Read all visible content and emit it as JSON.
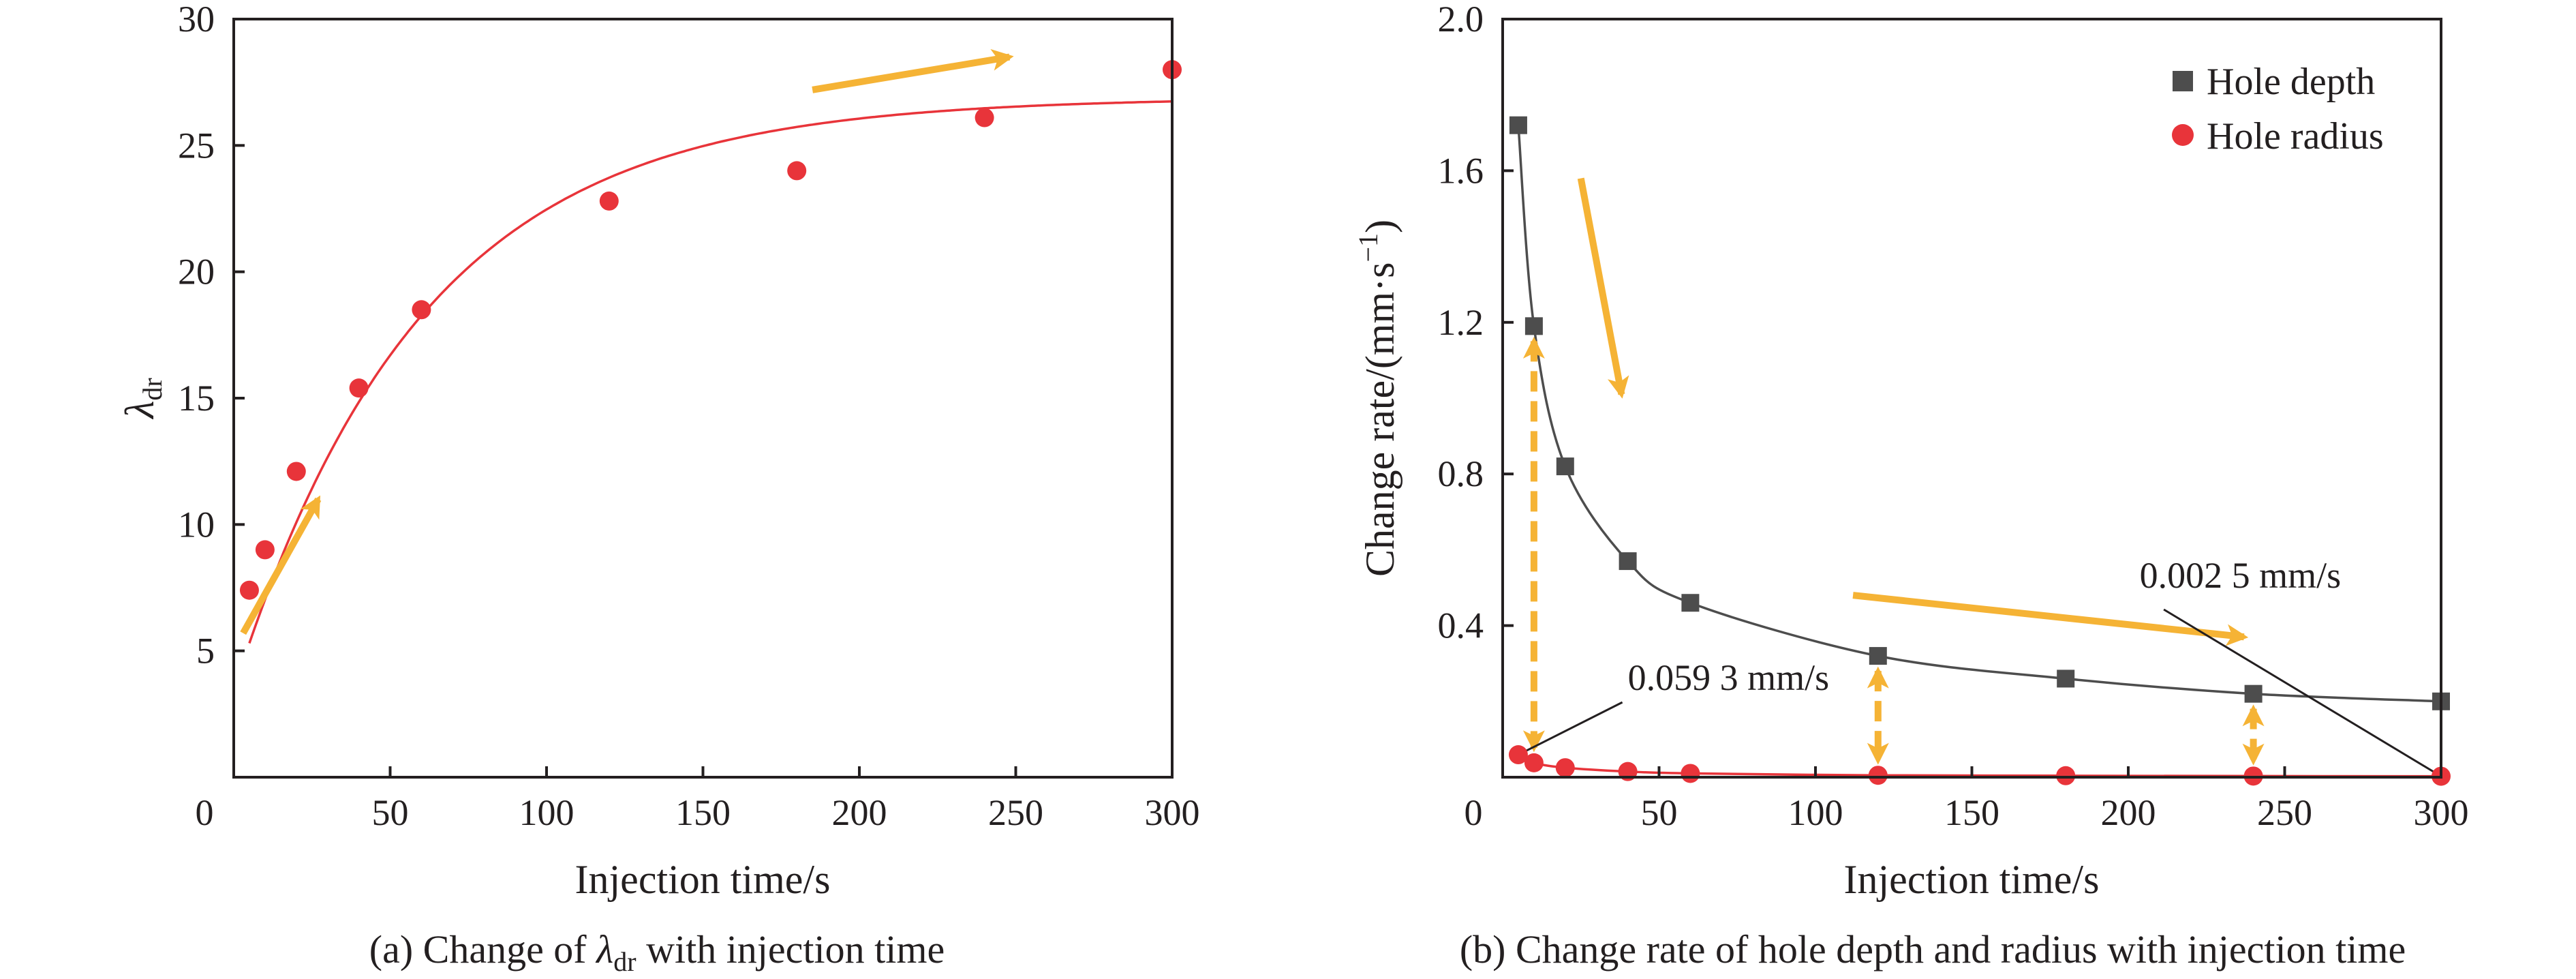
{
  "chart_data": [
    {
      "type": "scatter",
      "caption_prefix": "(a) Change of ",
      "caption_symbol": "λ",
      "caption_sub": "dr",
      "caption_suffix": " with injection time",
      "xlabel": "Injection time/s",
      "ylabel_symbol": "λ",
      "ylabel_sub": "dr",
      "xlim": [
        0,
        300
      ],
      "ylim": [
        0,
        30
      ],
      "x_ticks": [
        0,
        50,
        100,
        150,
        200,
        250,
        300
      ],
      "y_ticks": [
        5,
        10,
        15,
        20,
        25,
        30
      ],
      "origin_label": "0",
      "series": [
        {
          "color": "#e8343a",
          "marker": "circle",
          "x": [
            5,
            10,
            20,
            40,
            60,
            120,
            180,
            240,
            300
          ],
          "y": [
            7.4,
            9.0,
            12.1,
            15.4,
            18.5,
            22.8,
            24.0,
            26.1,
            28.0
          ]
        }
      ],
      "fit_curve": {
        "color": "#e8343a",
        "form": "exponential-saturation",
        "a": 26.9,
        "b": 21.6,
        "tau": 60
      },
      "arrows": [
        {
          "from": [
            3,
            5.7
          ],
          "to": [
            27,
            11.0
          ],
          "color": "#f5b335"
        },
        {
          "from": [
            185,
            27.2
          ],
          "to": [
            248,
            28.5
          ],
          "color": "#f5b335"
        }
      ],
      "grid": false
    },
    {
      "type": "scatter",
      "caption": "(b) Change rate of hole depth and radius with injection time",
      "xlabel": "Injection time/s",
      "ylabel_main": "Change rate/(mm·s",
      "ylabel_sup": "−1",
      "ylabel_close": ")",
      "xlim": [
        0,
        300
      ],
      "ylim": [
        0,
        2.0
      ],
      "x_ticks": [
        0,
        50,
        100,
        150,
        200,
        250,
        300
      ],
      "y_ticks": [
        0.4,
        0.8,
        1.2,
        1.6,
        2.0
      ],
      "y_tick_labels": [
        "0.4",
        "0.8",
        "1.2",
        "1.6",
        "2.0"
      ],
      "origin_label": "0",
      "legend_position": "top-right",
      "series": [
        {
          "name": "Hole depth",
          "color": "#4d4d4d",
          "marker": "square",
          "x": [
            5,
            10,
            20,
            40,
            60,
            120,
            180,
            240,
            300
          ],
          "y": [
            1.72,
            1.19,
            0.82,
            0.57,
            0.46,
            0.32,
            0.26,
            0.22,
            0.2
          ]
        },
        {
          "name": "Hole radius",
          "color": "#e8343a",
          "marker": "circle",
          "x": [
            5,
            10,
            20,
            40,
            60,
            120,
            180,
            240,
            300
          ],
          "y": [
            0.0593,
            0.038,
            0.025,
            0.015,
            0.01,
            0.005,
            0.004,
            0.003,
            0.0025
          ]
        }
      ],
      "annotations": [
        {
          "text": "0.059 3 mm/s",
          "point": [
            5,
            0.0593
          ],
          "label_at": [
            40,
            0.23
          ]
        },
        {
          "text": "0.002 5 mm/s",
          "point": [
            300,
            0.0025
          ],
          "label_at": [
            268,
            0.5
          ]
        }
      ],
      "arrows": [
        {
          "from": [
            25,
            1.58
          ],
          "to": [
            38,
            1.01
          ],
          "color": "#f5b335"
        },
        {
          "from": [
            112,
            0.48
          ],
          "to": [
            237,
            0.37
          ],
          "color": "#f5b335"
        }
      ],
      "double_arrows_at_x": [
        10,
        120,
        240
      ],
      "grid": false
    }
  ]
}
